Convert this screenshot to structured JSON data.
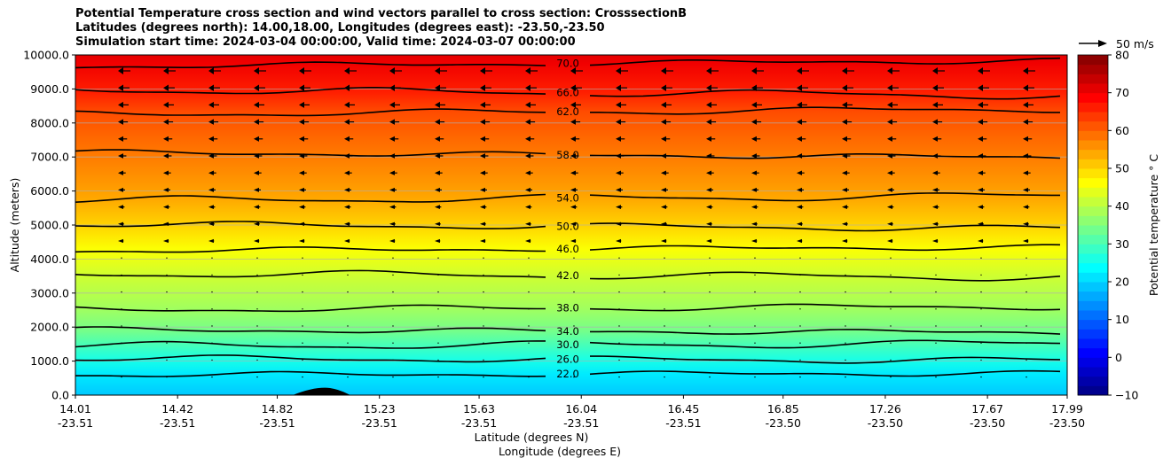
{
  "chart_data": {
    "type": "contour",
    "title_lines": [
      "Potential Temperature cross section and wind vectors parallel to cross section: CrosssectionB",
      "Latitudes (degrees north): 14.00,18.00, Longitudes (degrees east): -23.50,-23.50",
      "Simulation start time: 2024-03-04 00:00:00, Valid time: 2024-03-07 00:00:00"
    ],
    "ylabel": "Altitude (meters)",
    "xlabel_line1": "Latitude (degrees N)",
    "xlabel_line2": "Longitude (degrees E)",
    "ylim": [
      0,
      10000
    ],
    "y_ticks": [
      "0.0",
      "1000.0",
      "2000.0",
      "3000.0",
      "4000.0",
      "5000.0",
      "6000.0",
      "7000.0",
      "8000.0",
      "9000.0",
      "10000.0"
    ],
    "x_ticks": [
      {
        "lat": "14.01",
        "lon": "-23.51"
      },
      {
        "lat": "14.42",
        "lon": "-23.51"
      },
      {
        "lat": "14.82",
        "lon": "-23.51"
      },
      {
        "lat": "15.23",
        "lon": "-23.51"
      },
      {
        "lat": "15.63",
        "lon": "-23.51"
      },
      {
        "lat": "16.04",
        "lon": "-23.51"
      },
      {
        "lat": "16.45",
        "lon": "-23.51"
      },
      {
        "lat": "16.85",
        "lon": "-23.50"
      },
      {
        "lat": "17.26",
        "lon": "-23.50"
      },
      {
        "lat": "17.67",
        "lon": "-23.50"
      },
      {
        "lat": "17.99",
        "lon": "-23.50"
      }
    ],
    "grid": true,
    "contour_levels": [
      {
        "value": 22,
        "label": "22.0",
        "alt": 620
      },
      {
        "value": 26,
        "label": "26.0",
        "alt": 1050
      },
      {
        "value": 30,
        "label": "30.0",
        "alt": 1480
      },
      {
        "value": 34,
        "label": "34.0",
        "alt": 1880
      },
      {
        "value": 38,
        "label": "38.0",
        "alt": 2560
      },
      {
        "value": 42,
        "label": "42.0",
        "alt": 3520
      },
      {
        "value": 46,
        "label": "46.0",
        "alt": 4300
      },
      {
        "value": 50,
        "label": "50.0",
        "alt": 4960
      },
      {
        "value": 54,
        "label": "54.0",
        "alt": 5790
      },
      {
        "value": 58,
        "label": "58.0",
        "alt": 7060
      },
      {
        "value": 62,
        "label": "62.0",
        "alt": 8330
      },
      {
        "value": 66,
        "label": "66.0",
        "alt": 8890
      },
      {
        "value": 70,
        "label": "70.0",
        "alt": 9750
      }
    ],
    "colorbar": {
      "label": "Potential temperature ° C",
      "range": [
        -10,
        80
      ],
      "ticks": [
        "80",
        "70",
        "60",
        "50",
        "40",
        "30",
        "20",
        "10",
        "0",
        "−10"
      ]
    },
    "vector_key": "50 m/s",
    "colormap": "jet"
  }
}
